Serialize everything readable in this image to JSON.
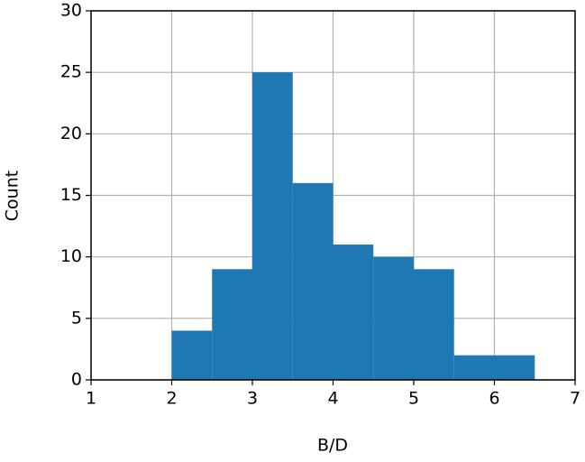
{
  "chart_data": {
    "type": "histogram",
    "xlabel": "B/D",
    "ylabel": "Count",
    "bins": [
      2,
      2.5,
      3,
      3.5,
      4,
      4.5,
      5,
      5.5,
      6,
      6.5
    ],
    "counts": [
      4,
      9,
      25,
      16,
      11,
      10,
      9,
      2,
      2
    ],
    "color": "#1f77b4",
    "xlim": [
      1,
      7
    ],
    "xticks": [
      1,
      2,
      3,
      4,
      5,
      6,
      7
    ],
    "ylim": [
      0,
      30
    ],
    "yticks": [
      0,
      5,
      10,
      15,
      20,
      25,
      30
    ],
    "grid": true
  }
}
